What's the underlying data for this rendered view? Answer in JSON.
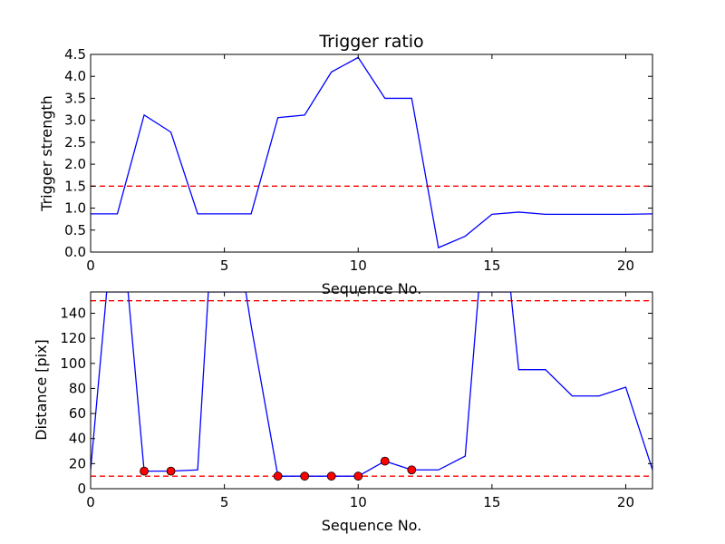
{
  "chart_data": [
    {
      "type": "line",
      "title": "Trigger ratio",
      "xlabel": "Sequence No.",
      "ylabel": "Trigger strength",
      "xlim": [
        0,
        21
      ],
      "ylim": [
        0,
        4.5
      ],
      "xticks": [
        0,
        5,
        10,
        15,
        20
      ],
      "xtick_labels": [
        "0",
        "5",
        "10",
        "15",
        "20"
      ],
      "yticks": [
        0,
        0.5,
        1,
        1.5,
        2,
        2.5,
        3,
        3.5,
        4,
        4.5
      ],
      "ytick_labels": [
        "0.0",
        "0.5",
        "1.0",
        "1.5",
        "2.0",
        "2.5",
        "3.0",
        "3.5",
        "4.0",
        "4.5"
      ],
      "grid": false,
      "series": [
        {
          "color": "#0000ff",
          "style": "solid",
          "x": [
            0,
            1,
            2,
            3,
            4,
            5,
            6,
            7,
            8,
            9,
            10,
            11,
            12,
            13,
            14,
            15,
            16,
            17,
            18,
            19,
            20,
            21
          ],
          "values": [
            0.87,
            0.87,
            3.12,
            2.73,
            0.87,
            0.87,
            0.87,
            3.06,
            3.12,
            4.1,
            4.43,
            3.5,
            3.5,
            0.1,
            0.36,
            0.86,
            0.91,
            0.86,
            0.86,
            0.86,
            0.86,
            0.87
          ]
        }
      ],
      "reference_lines": [
        {
          "y": 1.5,
          "color": "#ff0000",
          "style": "dashed"
        }
      ]
    },
    {
      "type": "line",
      "title": "",
      "xlabel": "Sequence No.",
      "ylabel": "Distance [pix]",
      "xlim": [
        0,
        21
      ],
      "ylim": [
        0,
        157
      ],
      "xticks": [
        0,
        5,
        10,
        15,
        20
      ],
      "xtick_labels": [
        "0",
        "5",
        "10",
        "15",
        "20"
      ],
      "yticks": [
        0,
        20,
        40,
        60,
        80,
        100,
        120,
        140
      ],
      "ytick_labels": [
        "0",
        "20",
        "40",
        "60",
        "80",
        "100",
        "120",
        "140"
      ],
      "grid": false,
      "series": [
        {
          "color": "#0000ff",
          "style": "solid",
          "x": [
            0,
            0.6,
            1.4,
            2,
            3,
            4,
            4.4,
            5.8,
            6,
            7,
            8,
            9,
            10,
            11,
            12,
            13,
            14,
            14.5,
            15.7,
            16,
            17,
            18,
            19,
            20,
            21
          ],
          "values": [
            15,
            157,
            157,
            14,
            14,
            15,
            157,
            157,
            130,
            10,
            10,
            10,
            10,
            22,
            15,
            15,
            26,
            157,
            157,
            95,
            95,
            74,
            74,
            81,
            15
          ]
        },
        {
          "color": "#ff0000",
          "marker": "circle",
          "line": false,
          "x": [
            2,
            3,
            7,
            8,
            9,
            10,
            11,
            12
          ],
          "values": [
            14,
            14,
            10,
            10,
            10,
            10,
            22,
            15
          ]
        }
      ],
      "reference_lines": [
        {
          "y": 150,
          "color": "#ff0000",
          "style": "dashed"
        },
        {
          "y": 10,
          "color": "#ff0000",
          "style": "dashed"
        }
      ]
    }
  ]
}
